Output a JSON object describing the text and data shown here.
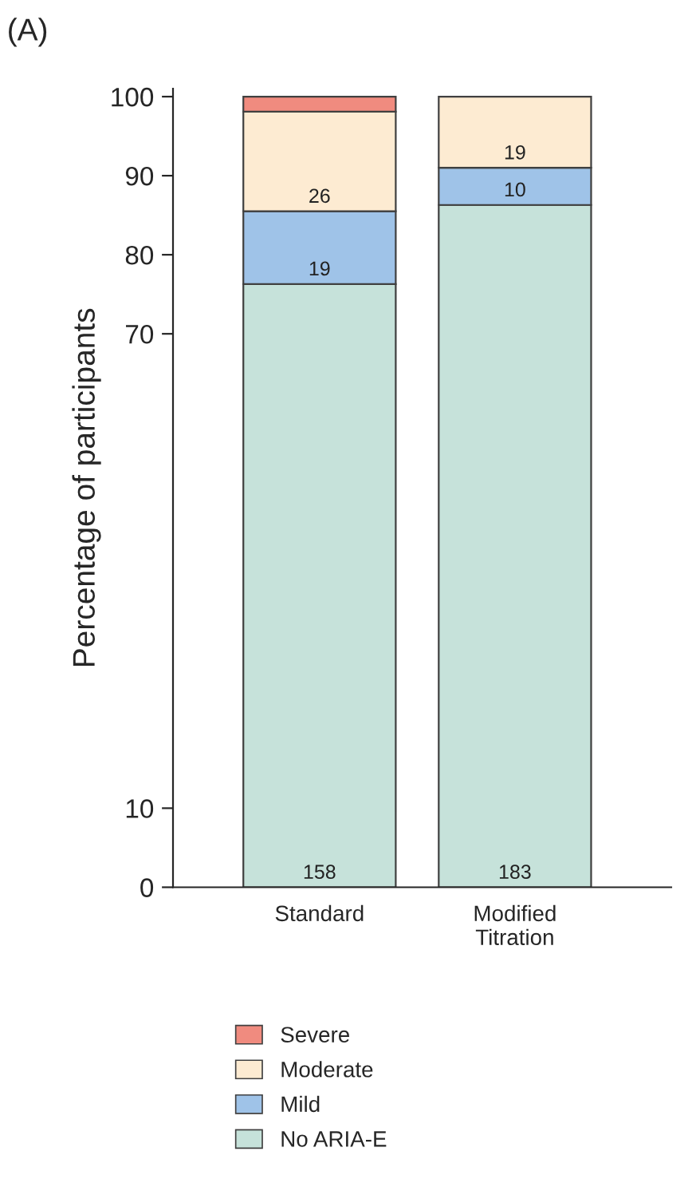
{
  "chart_data": {
    "type": "bar",
    "title": "(A)",
    "ylabel": "Percentage of participants",
    "categories": [
      "Standard",
      "Modified Titration"
    ],
    "stacked": true,
    "series": [
      {
        "name": "No ARIA-E",
        "color": "#c6e2da",
        "values": [
          76.3,
          86.3
        ]
      },
      {
        "name": "Mild",
        "color": "#9fc3e8",
        "values": [
          9.2,
          4.7
        ]
      },
      {
        "name": "Moderate",
        "color": "#fdebd2",
        "values": [
          12.6,
          9.0
        ]
      },
      {
        "name": "Severe",
        "color": "#f08b7f",
        "values": [
          1.9,
          null
        ]
      }
    ],
    "annotations": [
      {
        "text": "158",
        "x": "Standard",
        "y": 0
      },
      {
        "text": "19",
        "x": "Standard",
        "y": 76.3
      },
      {
        "text": "26",
        "x": "Standard",
        "y": 85.5
      },
      {
        "text": "183",
        "x": "Modified Titration",
        "y": 0
      },
      {
        "text": "10",
        "x": "Modified Titration",
        "y": 86.3
      },
      {
        "text": "19",
        "x": "Modified Titration",
        "y": 91.0
      }
    ],
    "ylim": [
      0,
      101
    ],
    "yticks": [
      0,
      10,
      70,
      80,
      90,
      100
    ],
    "grid": false,
    "legend": "bottom"
  }
}
